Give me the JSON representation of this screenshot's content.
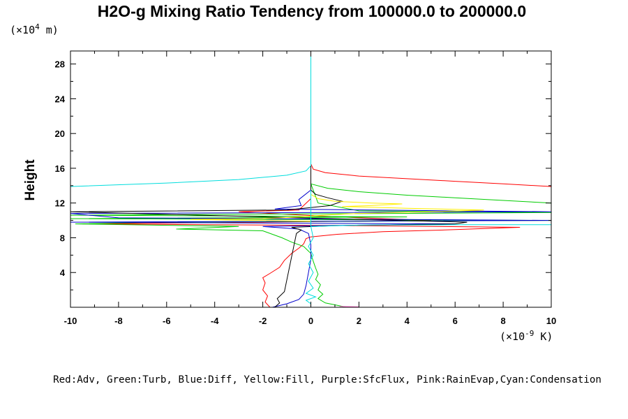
{
  "chart_data": {
    "type": "line",
    "title": "H2O-g Mixing Ratio Tendency from 100000.0 to 200000.0",
    "ylabel": "Height",
    "y_unit_prefix": "(×10",
    "y_unit_exp": "4",
    "y_unit_suffix": " m)",
    "x_unit_prefix": "(×10",
    "x_unit_exp": "-9",
    "x_unit_suffix": " K)",
    "xlim": [
      -10,
      10
    ],
    "ylim": [
      0,
      29.5
    ],
    "x_ticks": [
      -10,
      -8,
      -6,
      -4,
      -2,
      0,
      2,
      4,
      6,
      8,
      10
    ],
    "x_tick_labels": [
      "-10",
      "-8",
      "-6",
      "-4",
      "-2",
      "0",
      "2",
      "4",
      "6",
      "8",
      "10"
    ],
    "y_ticks": [
      4,
      8,
      12,
      16,
      20,
      24,
      28
    ],
    "y_tick_labels": [
      "4",
      "8",
      "12",
      "16",
      "20",
      "24",
      "28"
    ],
    "caption": "Red:Adv, Green:Turb, Blue:Diff, Yellow:Fill, Purple:SfcFlux, Pink:RainEvap,Cyan:Condensation",
    "series": [
      {
        "color": "#ff0000",
        "points": [
          [
            -1.7,
            0
          ],
          [
            -1.9,
            0.6
          ],
          [
            -1.8,
            1.3
          ],
          [
            -2.0,
            2.0
          ],
          [
            -1.9,
            2.8
          ],
          [
            -2.0,
            3.4
          ],
          [
            -1.7,
            3.9
          ],
          [
            -1.3,
            4.6
          ],
          [
            -1.1,
            5.4
          ],
          [
            -0.8,
            6.2
          ],
          [
            -0.5,
            6.8
          ],
          [
            -0.3,
            7.3
          ],
          [
            -0.2,
            7.9
          ],
          [
            0.0,
            8.1
          ],
          [
            1.1,
            8.4
          ],
          [
            3.0,
            8.7
          ],
          [
            5.6,
            8.9
          ],
          [
            8.7,
            9.2
          ],
          [
            2.0,
            9.4
          ],
          [
            -9.5,
            9.6
          ],
          [
            -2.0,
            9.8
          ],
          [
            5.0,
            10.0
          ],
          [
            2.0,
            10.3
          ],
          [
            -1.0,
            10.7
          ],
          [
            -3.0,
            11.0
          ],
          [
            -0.5,
            11.2
          ],
          [
            0.0,
            12.5
          ],
          [
            0.0,
            16.5
          ],
          [
            0.1,
            15.9
          ],
          [
            0.6,
            15.5
          ],
          [
            2.0,
            15.1
          ],
          [
            4.0,
            14.8
          ],
          [
            6.0,
            14.5
          ],
          [
            8.0,
            14.2
          ],
          [
            10.0,
            13.9
          ]
        ]
      },
      {
        "color": "#00cc00",
        "points": [
          [
            1.5,
            0
          ],
          [
            0.6,
            0.5
          ],
          [
            0.3,
            1.0
          ],
          [
            0.5,
            1.5
          ],
          [
            0.3,
            2.0
          ],
          [
            0.4,
            2.6
          ],
          [
            0.2,
            3.2
          ],
          [
            0.3,
            3.8
          ],
          [
            0.2,
            4.5
          ],
          [
            0.1,
            5.3
          ],
          [
            0.0,
            6.2
          ],
          [
            -0.3,
            7.0
          ],
          [
            -0.8,
            7.5
          ],
          [
            -1.2,
            8.0
          ],
          [
            -1.6,
            8.4
          ],
          [
            -2.0,
            8.8
          ],
          [
            -5.6,
            9.0
          ],
          [
            -3.0,
            9.3
          ],
          [
            -9.8,
            9.6
          ],
          [
            -6.0,
            9.8
          ],
          [
            10.0,
            10.0
          ],
          [
            -10.0,
            10.2
          ],
          [
            4.0,
            10.4
          ],
          [
            -10.0,
            10.6
          ],
          [
            10.0,
            10.9
          ],
          [
            2.0,
            11.1
          ],
          [
            0.3,
            12.0
          ],
          [
            0.0,
            14.2
          ],
          [
            0.7,
            13.7
          ],
          [
            2.0,
            13.3
          ],
          [
            4.0,
            12.9
          ],
          [
            6.0,
            12.6
          ],
          [
            8.0,
            12.3
          ],
          [
            10.0,
            12.0
          ]
        ]
      },
      {
        "color": "#0000cc",
        "points": [
          [
            -1.6,
            0
          ],
          [
            -1.0,
            0.4
          ],
          [
            -0.5,
            0.9
          ],
          [
            -0.3,
            1.5
          ],
          [
            -0.2,
            2.5
          ],
          [
            -0.1,
            4.0
          ],
          [
            0.0,
            5.5
          ],
          [
            0.0,
            7.2
          ],
          [
            -0.1,
            8.5
          ],
          [
            -0.5,
            9.0
          ],
          [
            -2.0,
            9.3
          ],
          [
            6.0,
            9.6
          ],
          [
            -10.0,
            9.8
          ],
          [
            10.0,
            10.0
          ],
          [
            -8.0,
            10.3
          ],
          [
            -10.0,
            10.8
          ],
          [
            10.0,
            11.0
          ],
          [
            -1.5,
            11.3
          ],
          [
            -0.4,
            11.7
          ],
          [
            -0.5,
            12.4
          ],
          [
            0.0,
            13.5
          ],
          [
            0.0,
            14.0
          ]
        ]
      },
      {
        "color": "#000000",
        "points": [
          [
            -1.5,
            0
          ],
          [
            -1.3,
            0.5
          ],
          [
            -1.4,
            1.0
          ],
          [
            -1.1,
            1.8
          ],
          [
            -0.6,
            8.5
          ],
          [
            -0.4,
            8.9
          ],
          [
            -0.8,
            9.2
          ],
          [
            1.0,
            9.4
          ],
          [
            6.0,
            9.6
          ],
          [
            6.5,
            9.8
          ],
          [
            -0.5,
            10.3
          ],
          [
            -10.0,
            11.0
          ],
          [
            -1.0,
            11.2
          ],
          [
            0.8,
            11.7
          ],
          [
            1.3,
            12.2
          ],
          [
            0.7,
            12.6
          ],
          [
            0.2,
            13.0
          ],
          [
            0.0,
            13.5
          ],
          [
            0.0,
            16.3
          ]
        ]
      },
      {
        "color": "#ffee00",
        "points": [
          [
            0.0,
            13.0
          ],
          [
            0.3,
            12.5
          ],
          [
            1.0,
            12.2
          ],
          [
            2.5,
            12.0
          ],
          [
            3.8,
            11.9
          ],
          [
            2.5,
            11.7
          ],
          [
            1.3,
            11.6
          ],
          [
            4.0,
            11.4
          ],
          [
            7.2,
            11.2
          ],
          [
            5.0,
            11.0
          ],
          [
            2.0,
            10.8
          ],
          [
            0.5,
            10.6
          ],
          [
            -0.5,
            10.4
          ],
          [
            -2.0,
            10.2
          ],
          [
            -5.0,
            10.1
          ],
          [
            0.0,
            9.9
          ]
        ]
      },
      {
        "color": "#ff66cc",
        "points": [
          [
            1.6,
            0.0
          ],
          [
            2.0,
            0.05
          ],
          [
            1.2,
            0.1
          ]
        ]
      },
      {
        "color": "#00dddd",
        "points": [
          [
            -10.0,
            13.9
          ],
          [
            -6.0,
            14.3
          ],
          [
            -3.0,
            14.7
          ],
          [
            -1.0,
            15.2
          ],
          [
            -0.2,
            15.7
          ],
          [
            0.0,
            16.3
          ],
          [
            0.0,
            29.5
          ]
        ]
      },
      {
        "color": "#00dddd",
        "points": [
          [
            0.0,
            13.5
          ],
          [
            0.0,
            9.3
          ],
          [
            2.0,
            9.45
          ],
          [
            6.0,
            9.5
          ],
          [
            10.0,
            9.5
          ]
        ]
      },
      {
        "color": "#00dddd",
        "points": [
          [
            0.0,
            9.3
          ],
          [
            0.1,
            8.0
          ],
          [
            -0.1,
            7.0
          ],
          [
            0.1,
            6.0
          ],
          [
            -0.1,
            5.0
          ],
          [
            0.1,
            4.0
          ],
          [
            -0.1,
            3.0
          ],
          [
            0.1,
            2.2
          ],
          [
            -0.2,
            1.6
          ],
          [
            0.2,
            1.2
          ],
          [
            -0.2,
            0.8
          ],
          [
            0.0,
            0.4
          ],
          [
            0.0,
            0.0
          ]
        ]
      }
    ]
  }
}
